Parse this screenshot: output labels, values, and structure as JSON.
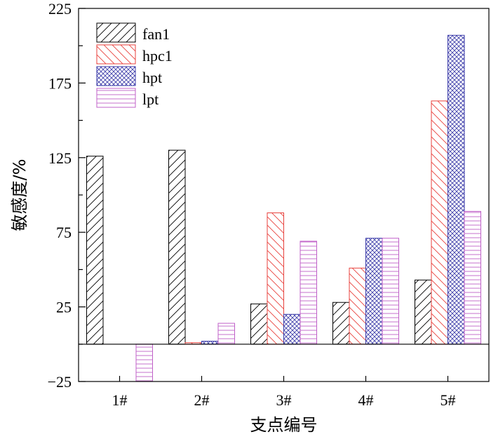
{
  "chart_data": {
    "type": "bar",
    "title": "",
    "xlabel": "支点编号",
    "ylabel": "敏感度/%",
    "categories": [
      "1#",
      "2#",
      "3#",
      "4#",
      "5#"
    ],
    "ylim": [
      -25,
      225
    ],
    "yticks": [
      -25,
      25,
      75,
      125,
      175,
      225
    ],
    "legend_position": "top-left",
    "grid": false,
    "series": [
      {
        "name": "fan1",
        "values": [
          126,
          130,
          27,
          28,
          43
        ],
        "color": "#000000",
        "pattern": "hatch-forward"
      },
      {
        "name": "hpc1",
        "values": [
          0,
          1,
          88,
          51,
          163
        ],
        "color": "#e8413c",
        "pattern": "hatch-backward"
      },
      {
        "name": "hpt",
        "values": [
          0,
          2,
          20,
          71,
          207
        ],
        "color": "#3a3aa8",
        "pattern": "crosshatch"
      },
      {
        "name": "lpt",
        "values": [
          -25,
          14,
          69,
          71,
          89
        ],
        "color": "#c060c8",
        "pattern": "horizontal-lines"
      }
    ]
  }
}
